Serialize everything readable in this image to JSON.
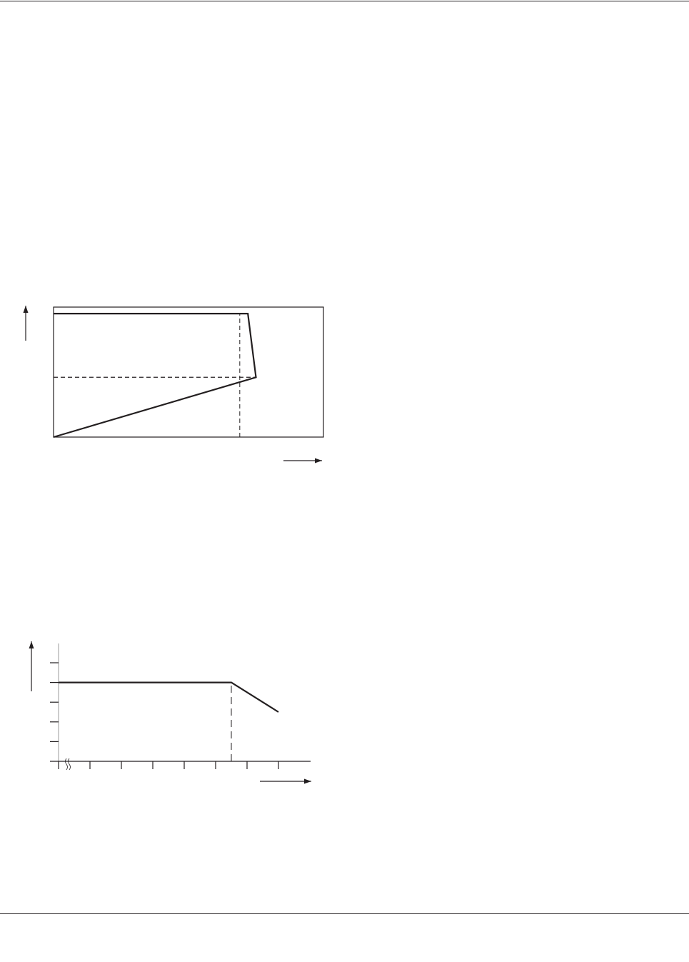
{
  "chart_data": [
    {
      "type": "line",
      "title": "",
      "xlabel": "",
      "ylabel": "",
      "xlim": [
        0,
        100
      ],
      "ylim": [
        0,
        100
      ],
      "grid": false,
      "frame": "box",
      "series": [
        {
          "points": [
            [
              0,
              0
            ],
            [
              75,
              46
            ],
            [
              72,
              95
            ],
            [
              0,
              95
            ]
          ],
          "style": "solid"
        }
      ],
      "reference_lines": [
        {
          "orientation": "vertical",
          "x": 69,
          "y_range": [
            0,
            95
          ],
          "style": "dashed"
        },
        {
          "orientation": "horizontal",
          "y": 46,
          "x_range": [
            0,
            75
          ],
          "style": "dashed"
        }
      ]
    },
    {
      "type": "line",
      "title": "",
      "xlabel": "",
      "ylabel": "",
      "xlim": [
        0,
        8
      ],
      "ylim": [
        0,
        5.5
      ],
      "x_ticks": [
        0,
        1,
        2,
        3,
        4,
        5,
        6,
        7
      ],
      "y_ticks": [
        1,
        2,
        3,
        4,
        5
      ],
      "axis_break": "x",
      "grid": false,
      "series": [
        {
          "points": [
            [
              0,
              4
            ],
            [
              5.5,
              4
            ],
            [
              7,
              2.5
            ]
          ],
          "style": "solid"
        }
      ],
      "reference_lines": [
        {
          "orientation": "vertical",
          "x": 5.5,
          "y_range": [
            0,
            4
          ],
          "style": "dashed"
        }
      ]
    }
  ],
  "colors": {
    "ink": "#231f20",
    "axis_gray": "#aaaaaa"
  }
}
